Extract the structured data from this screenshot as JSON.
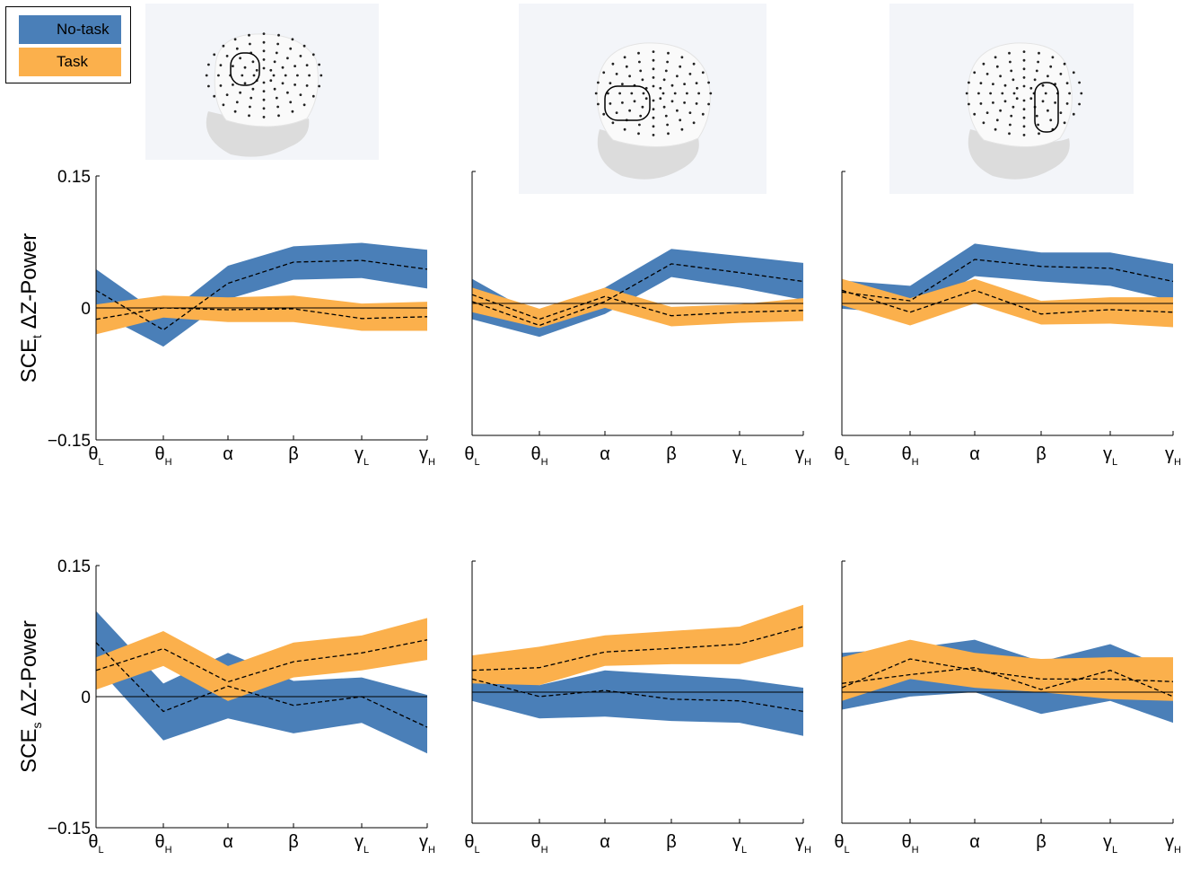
{
  "legend": {
    "items": [
      {
        "label": "No-task",
        "color": "#4a7fb8"
      },
      {
        "label": "Task",
        "color": "#fbb04c"
      }
    ]
  },
  "chart_data": [
    {
      "type": "line",
      "ylabel": "SCE_t ΔZ-Power",
      "categories": [
        "θL",
        "θH",
        "α",
        "β",
        "γL",
        "γH"
      ],
      "ylim": [
        -0.15,
        0.15
      ],
      "yticks": [
        "0.15",
        "0",
        "−0.15"
      ],
      "series": [
        {
          "name": "No-task",
          "mean": [
            0.02,
            -0.025,
            0.028,
            0.052,
            0.054,
            0.044
          ],
          "upper": [
            0.044,
            -0.01,
            0.048,
            0.07,
            0.074,
            0.066
          ],
          "lower": [
            -0.004,
            -0.044,
            0.01,
            0.032,
            0.034,
            0.022
          ]
        },
        {
          "name": "Task",
          "mean": [
            -0.013,
            0.0,
            -0.002,
            -0.001,
            -0.012,
            -0.01
          ],
          "upper": [
            0.004,
            0.014,
            0.012,
            0.014,
            0.005,
            0.007
          ],
          "lower": [
            -0.03,
            -0.011,
            -0.016,
            -0.016,
            -0.026,
            -0.026
          ]
        }
      ]
    },
    {
      "type": "line",
      "ylabel": "",
      "categories": [
        "θL",
        "θH",
        "α",
        "β",
        "γL",
        "γH"
      ],
      "ylim": [
        -0.15,
        0.15
      ],
      "yticks": [],
      "series": [
        {
          "name": "No-task",
          "mean": [
            0.002,
            -0.025,
            0.002,
            0.045,
            0.035,
            0.025
          ],
          "upper": [
            0.028,
            -0.015,
            0.018,
            0.062,
            0.054,
            0.046
          ],
          "lower": [
            -0.018,
            -0.038,
            -0.012,
            0.03,
            0.018,
            0.004
          ]
        },
        {
          "name": "Task",
          "mean": [
            0.01,
            -0.018,
            0.008,
            -0.014,
            -0.01,
            -0.008
          ],
          "upper": [
            0.018,
            -0.006,
            0.018,
            -0.004,
            -0.001,
            0.006
          ],
          "lower": [
            -0.01,
            -0.028,
            -0.005,
            -0.026,
            -0.022,
            -0.02
          ]
        }
      ]
    },
    {
      "type": "line",
      "ylabel": "",
      "categories": [
        "θL",
        "θH",
        "α",
        "β",
        "γL",
        "γH"
      ],
      "ylim": [
        -0.15,
        0.15
      ],
      "yticks": [],
      "series": [
        {
          "name": "No-task",
          "mean": [
            0.013,
            0.003,
            0.05,
            0.042,
            0.04,
            0.025
          ],
          "upper": [
            0.026,
            0.02,
            0.068,
            0.058,
            0.058,
            0.045
          ],
          "lower": [
            -0.006,
            -0.012,
            0.031,
            0.025,
            0.02,
            0.003
          ]
        },
        {
          "name": "Task",
          "mean": [
            0.015,
            -0.01,
            0.015,
            -0.012,
            -0.007,
            -0.01
          ],
          "upper": [
            0.028,
            0.006,
            0.028,
            0.003,
            0.007,
            0.007
          ],
          "lower": [
            -0.002,
            -0.025,
            0.0,
            -0.024,
            -0.023,
            -0.027
          ]
        }
      ]
    },
    {
      "type": "line",
      "ylabel": "SCE_s ΔZ-Power",
      "categories": [
        "θL",
        "θH",
        "α",
        "β",
        "γL",
        "γH"
      ],
      "ylim": [
        -0.15,
        0.15
      ],
      "yticks": [
        "0.15",
        "0",
        "−0.15"
      ],
      "series": [
        {
          "name": "No-task",
          "mean": [
            0.062,
            -0.017,
            0.012,
            -0.01,
            0.0,
            -0.035
          ],
          "upper": [
            0.098,
            0.015,
            0.05,
            0.018,
            0.022,
            0.002
          ],
          "lower": [
            0.035,
            -0.05,
            -0.025,
            -0.042,
            -0.03,
            -0.065
          ]
        },
        {
          "name": "Task",
          "mean": [
            0.03,
            0.055,
            0.017,
            0.04,
            0.05,
            0.065
          ],
          "upper": [
            0.045,
            0.075,
            0.035,
            0.062,
            0.07,
            0.09
          ],
          "lower": [
            0.008,
            0.035,
            -0.005,
            0.022,
            0.03,
            0.042
          ]
        }
      ]
    },
    {
      "type": "line",
      "ylabel": "",
      "categories": [
        "θL",
        "θH",
        "α",
        "β",
        "γL",
        "γH"
      ],
      "ylim": [
        -0.15,
        0.15
      ],
      "yticks": [],
      "series": [
        {
          "name": "No-task",
          "mean": [
            0.015,
            -0.005,
            0.002,
            -0.008,
            -0.01,
            -0.022
          ],
          "upper": [
            0.03,
            0.008,
            0.025,
            0.02,
            0.015,
            0.005
          ],
          "lower": [
            -0.01,
            -0.03,
            -0.028,
            -0.033,
            -0.035,
            -0.05
          ]
        },
        {
          "name": "Task",
          "mean": [
            0.025,
            0.028,
            0.046,
            0.05,
            0.055,
            0.075
          ],
          "upper": [
            0.042,
            0.052,
            0.065,
            0.07,
            0.075,
            0.1
          ],
          "lower": [
            0.01,
            0.008,
            0.03,
            0.032,
            0.032,
            0.052
          ]
        }
      ]
    },
    {
      "type": "line",
      "ylabel": "",
      "categories": [
        "θL",
        "θH",
        "α",
        "β",
        "γL",
        "γH"
      ],
      "ylim": [
        -0.15,
        0.15
      ],
      "yticks": [],
      "series": [
        {
          "name": "No-task",
          "mean": [
            0.01,
            0.02,
            0.028,
            0.003,
            0.025,
            -0.005
          ],
          "upper": [
            0.045,
            0.05,
            0.06,
            0.035,
            0.055,
            0.025
          ],
          "lower": [
            -0.02,
            -0.005,
            0.0,
            -0.025,
            -0.01,
            -0.035
          ]
        },
        {
          "name": "Task",
          "mean": [
            0.005,
            0.038,
            0.025,
            0.015,
            0.015,
            0.012
          ],
          "upper": [
            0.04,
            0.06,
            0.045,
            0.038,
            0.04,
            0.04
          ],
          "lower": [
            -0.01,
            0.015,
            0.005,
            0.0,
            -0.008,
            -0.01
          ]
        }
      ]
    }
  ]
}
